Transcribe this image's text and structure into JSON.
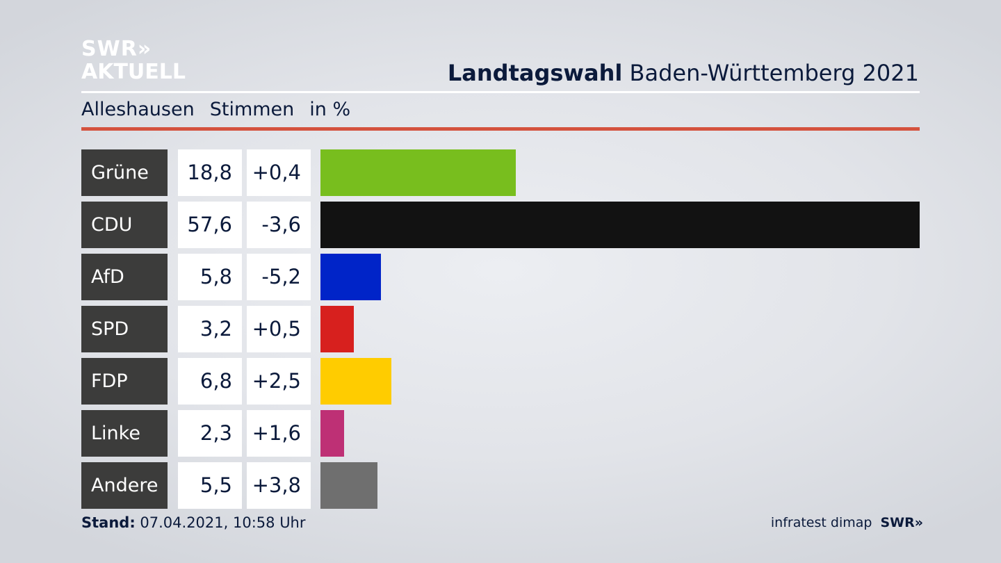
{
  "logo": {
    "line1": "SWR",
    "chevrons": "»",
    "line2": "AKTUELL"
  },
  "header": {
    "title_bold": "Landtagswahl",
    "title_rest": "Baden-Württemberg 2021"
  },
  "subheader": {
    "place": "Alleshausen",
    "measure": "Stimmen",
    "unit": "in %"
  },
  "colors": {
    "accent_rule": "#d4523e",
    "label_bg": "#3c3c3b"
  },
  "chart_data": {
    "type": "bar",
    "categories": [
      "Grüne",
      "CDU",
      "AfD",
      "SPD",
      "FDP",
      "Linke",
      "Andere"
    ],
    "values": [
      18.8,
      57.6,
      5.8,
      3.2,
      6.8,
      2.3,
      5.5
    ],
    "value_labels": [
      "18,8",
      "57,6",
      "5,8",
      "3,2",
      "6,8",
      "2,3",
      "5,5"
    ],
    "diff_labels": [
      "+0,4",
      "-3,6",
      "-5,2",
      "+0,5",
      "+2,5",
      "+1,6",
      "+3,8"
    ],
    "bar_colors": [
      "#78be1e",
      "#121212",
      "#0024c8",
      "#d7201e",
      "#ffcc00",
      "#be3075",
      "#6f6f6f"
    ],
    "xlim": [
      0,
      57.6
    ]
  },
  "footer": {
    "stand_label": "Stand:",
    "stand_value": "07.04.2021, 10:58 Uhr",
    "source": "infratest dimap",
    "brand": "SWR",
    "brand_chevrons": "»"
  }
}
